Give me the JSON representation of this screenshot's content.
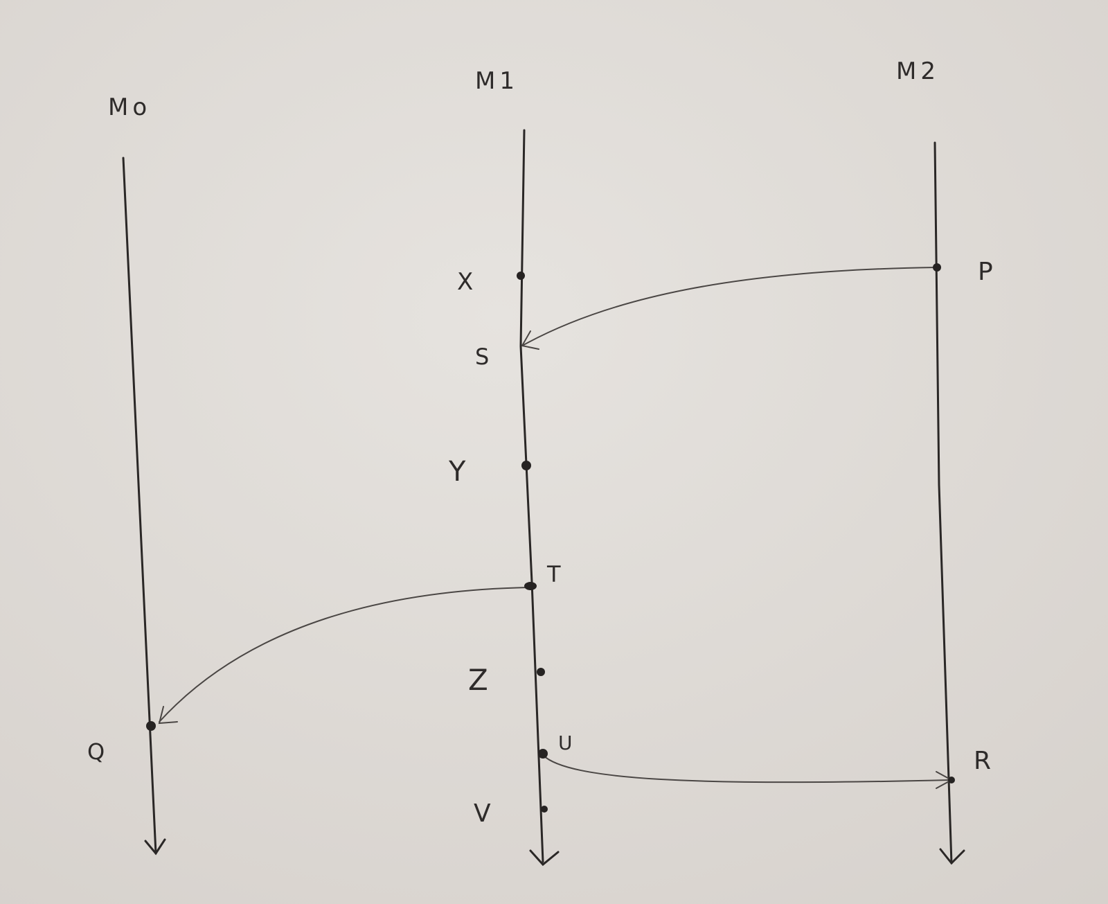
{
  "processes": [
    {
      "id": "m0",
      "label": "Mo"
    },
    {
      "id": "m1",
      "label": "M1"
    },
    {
      "id": "m2",
      "label": "M2"
    }
  ],
  "events": [
    {
      "id": "x",
      "label": "X",
      "process": "m1"
    },
    {
      "id": "s",
      "label": "S",
      "process": "m1"
    },
    {
      "id": "y",
      "label": "Y",
      "process": "m1"
    },
    {
      "id": "t",
      "label": "T",
      "process": "m1"
    },
    {
      "id": "z",
      "label": "Z",
      "process": "m1"
    },
    {
      "id": "u",
      "label": "U",
      "process": "m1"
    },
    {
      "id": "v",
      "label": "V",
      "process": "m1"
    },
    {
      "id": "p",
      "label": "P",
      "process": "m2"
    },
    {
      "id": "r",
      "label": "R",
      "process": "m2"
    },
    {
      "id": "q",
      "label": "Q",
      "process": "m0"
    }
  ],
  "messages": [
    {
      "from": "p",
      "to": "s"
    },
    {
      "from": "t",
      "to": "q"
    },
    {
      "from": "u",
      "to": "r"
    }
  ]
}
